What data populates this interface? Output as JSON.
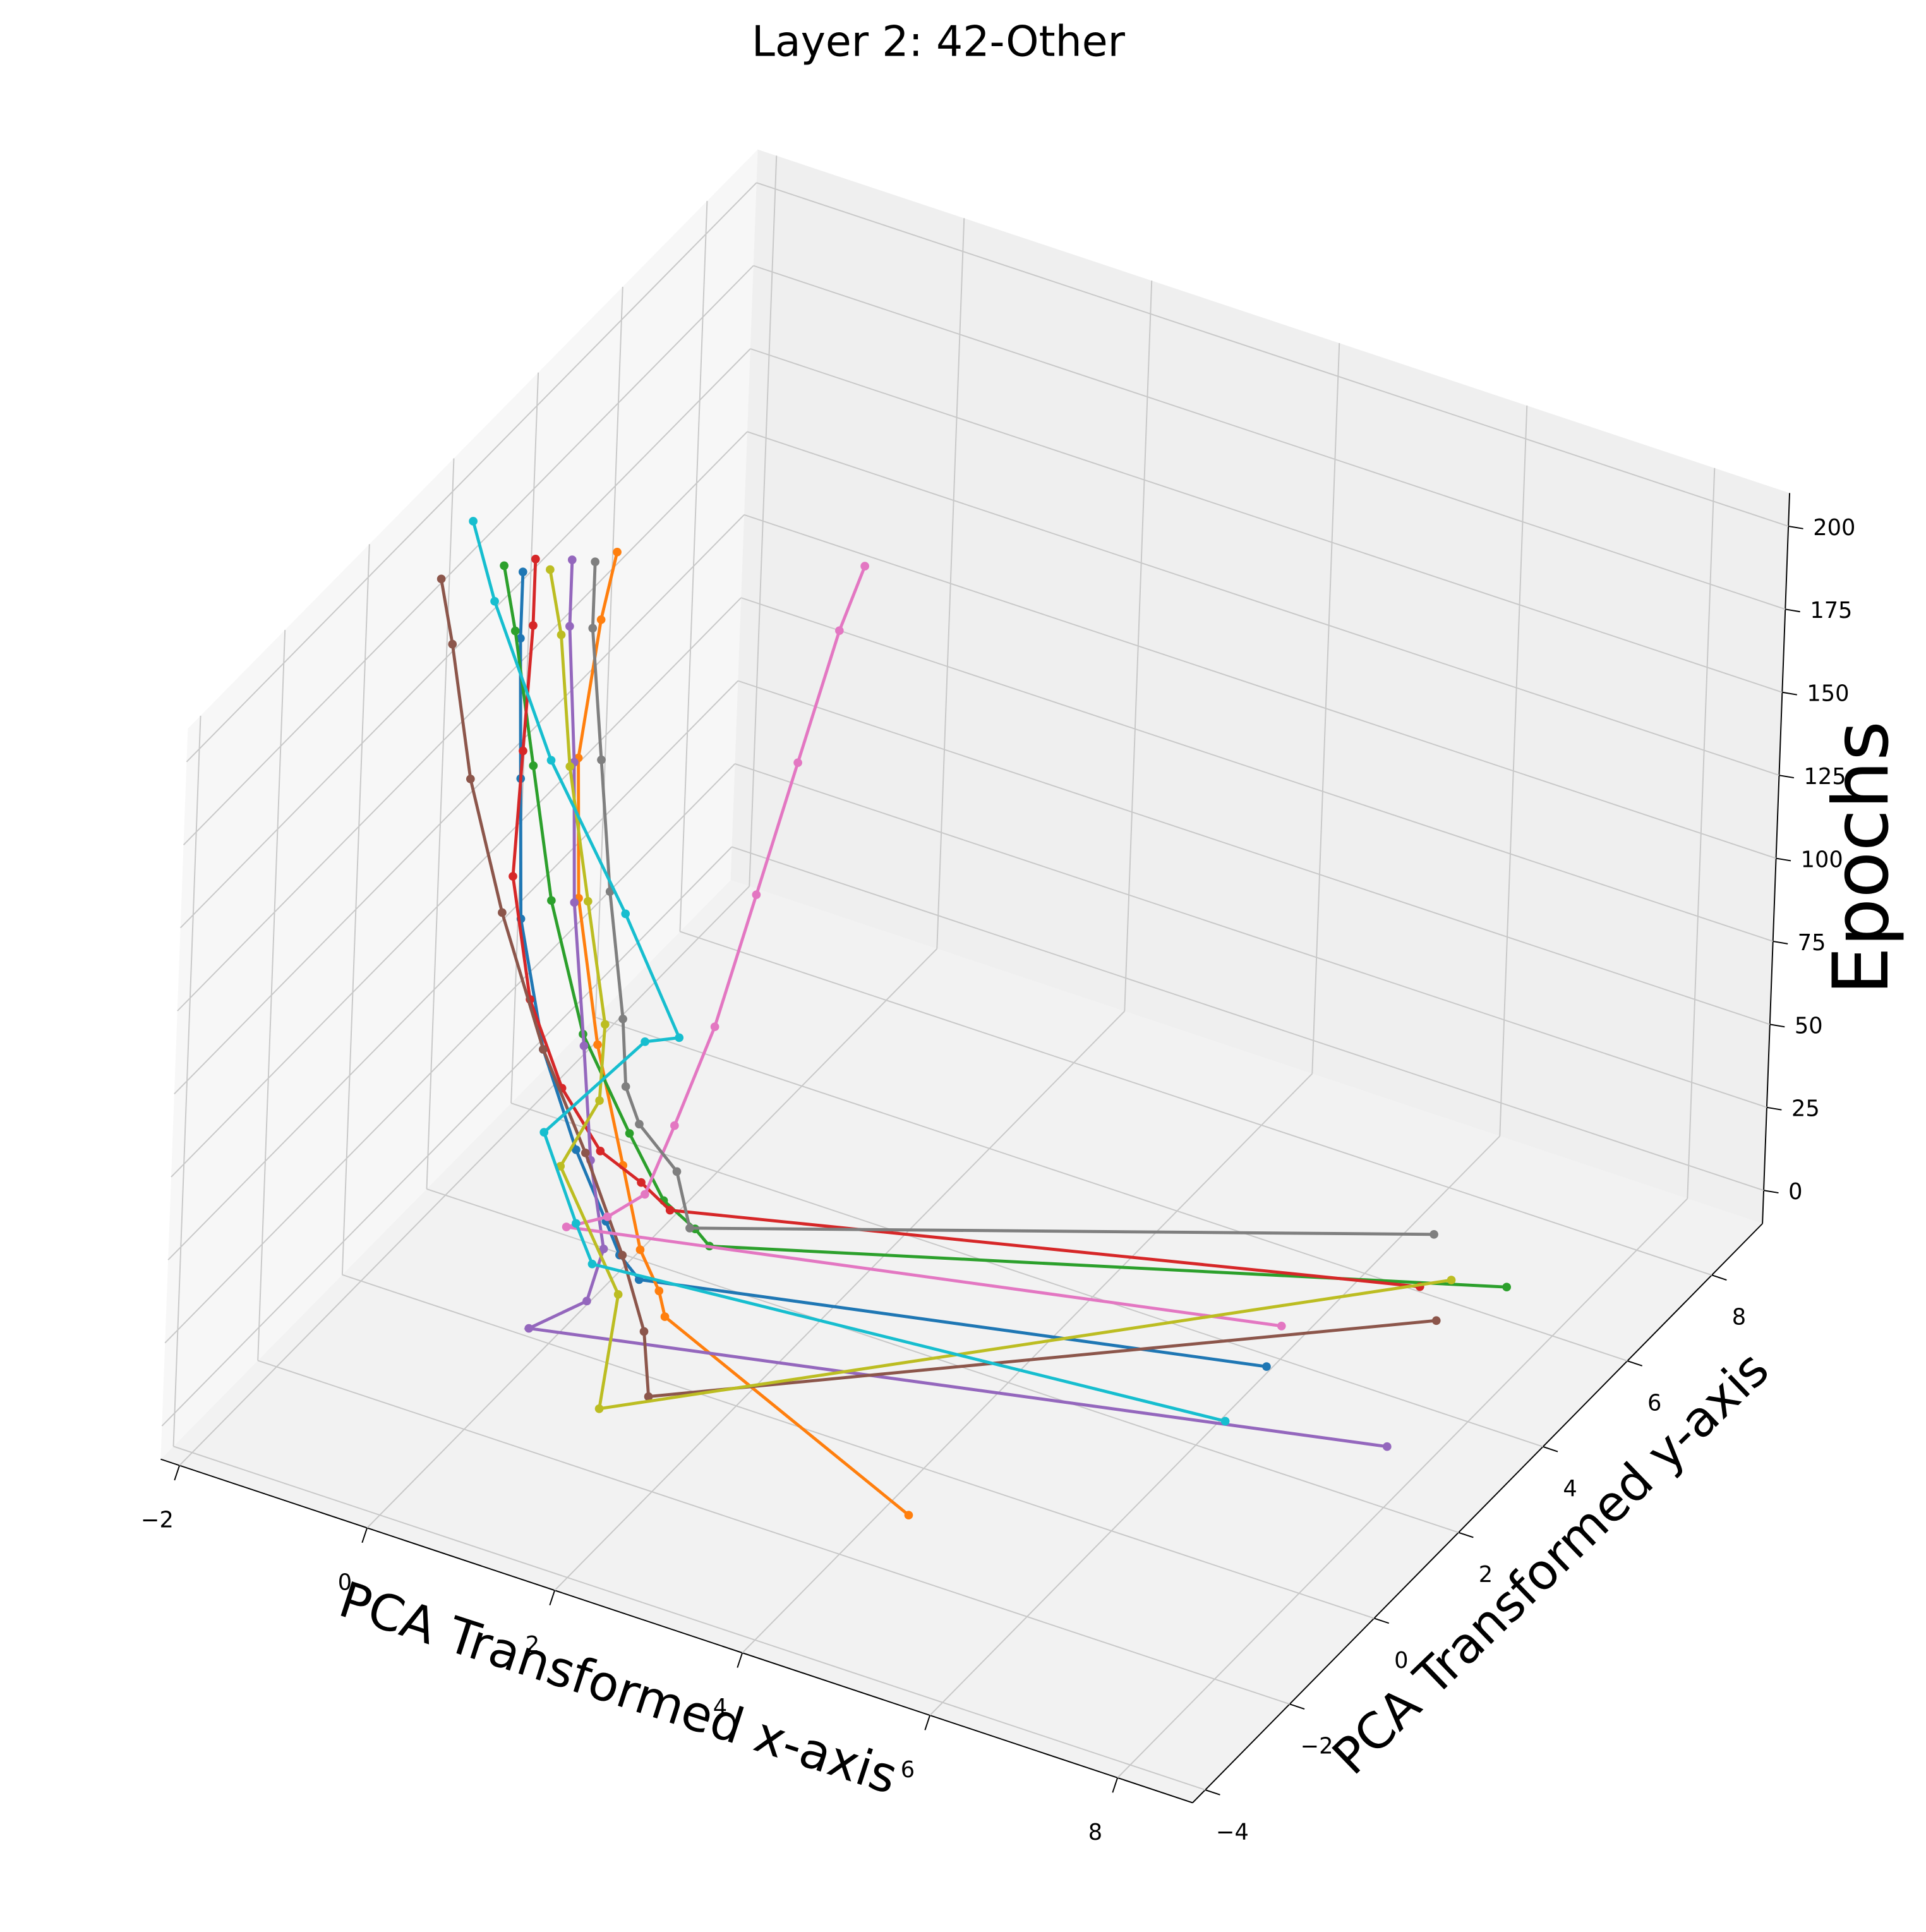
{
  "chart_data": {
    "type": "line3d",
    "title": "Layer 2: 42-Other",
    "xlabel": "PCA Transformed x-axis",
    "ylabel": "PCA Transformed y-axis",
    "zlabel": "Epochs",
    "xlim": [
      -2.2,
      8.8
    ],
    "ylim": [
      -4.3,
      9.2
    ],
    "zlim": [
      -10,
      210
    ],
    "xticks": [
      {
        "value": -2,
        "label": "−2"
      },
      0,
      2,
      4,
      6,
      8
    ],
    "yticks": [
      {
        "value": -4,
        "label": "−4"
      },
      {
        "value": -2,
        "label": "−2"
      },
      0,
      2,
      4,
      6,
      8
    ],
    "zticks": [
      0,
      25,
      50,
      75,
      100,
      125,
      150,
      175,
      200
    ],
    "grid": true,
    "series": [
      {
        "color": "#1f77b4",
        "x": [
          6.2,
          0.5,
          0.2,
          0.0,
          -0.3,
          -0.6,
          -0.8,
          -0.9,
          -1.0,
          -1.0
        ],
        "y": [
          3.2,
          1.0,
          1.2,
          1.3,
          1.2,
          1.0,
          0.8,
          0.9,
          1.0,
          1.0
        ],
        "z": [
          0,
          1,
          3,
          10,
          30,
          60,
          100,
          140,
          180,
          200
        ]
      },
      {
        "color": "#ff7f0e",
        "x": [
          4.5,
          1.0,
          0.8,
          0.5,
          0.2,
          -0.2,
          -0.5,
          -0.6,
          -0.5,
          -0.4
        ],
        "y": [
          -1.5,
          0.5,
          0.8,
          1.0,
          1.2,
          1.4,
          1.5,
          1.6,
          1.8,
          1.9
        ],
        "z": [
          0,
          1,
          3,
          10,
          30,
          60,
          100,
          140,
          180,
          200
        ]
      },
      {
        "color": "#2ca02c",
        "x": [
          7.5,
          0.8,
          0.6,
          0.3,
          0.0,
          -0.4,
          -0.7,
          -0.9,
          -1.1,
          -1.2
        ],
        "y": [
          6.0,
          2.0,
          2.1,
          2.0,
          1.8,
          1.5,
          1.3,
          1.2,
          1.1,
          1.0
        ],
        "z": [
          0,
          1,
          3,
          10,
          30,
          60,
          100,
          140,
          180,
          200
        ]
      },
      {
        "color": "#d62728",
        "x": [
          6.8,
          0.2,
          -0.2,
          -0.6,
          -0.9,
          -1.1,
          -1.2,
          -1.1,
          -1.0,
          -1.0
        ],
        "y": [
          5.5,
          2.4,
          2.6,
          2.5,
          2.2,
          1.8,
          1.5,
          1.4,
          1.3,
          1.3
        ],
        "z": [
          0,
          1,
          3,
          10,
          30,
          60,
          100,
          140,
          180,
          200
        ]
      },
      {
        "color": "#9467bd",
        "x": [
          7.8,
          0.0,
          0.3,
          0.2,
          -0.1,
          -0.3,
          -0.5,
          -0.6,
          -0.7,
          -0.7
        ],
        "y": [
          2.5,
          -0.5,
          0.2,
          0.8,
          1.1,
          1.3,
          1.4,
          1.5,
          1.5,
          1.5
        ],
        "z": [
          0,
          1,
          3,
          10,
          30,
          60,
          100,
          140,
          180,
          200
        ]
      },
      {
        "color": "#8c564b",
        "x": [
          7.2,
          1.5,
          1.0,
          0.4,
          -0.2,
          -0.6,
          -1.0,
          -1.3,
          -1.5,
          -1.6
        ],
        "y": [
          5.0,
          -1.0,
          0.0,
          0.8,
          1.2,
          1.0,
          0.8,
          0.6,
          0.5,
          0.4
        ],
        "z": [
          0,
          1,
          3,
          10,
          30,
          60,
          100,
          140,
          180,
          200
        ]
      },
      {
        "color": "#e377c2",
        "x": [
          6.0,
          -0.5,
          -0.2,
          0.1,
          0.3,
          0.6,
          0.9,
          1.2,
          1.5,
          1.7
        ],
        "y": [
          4.0,
          1.5,
          1.8,
          2.0,
          2.2,
          2.4,
          2.6,
          2.8,
          3.0,
          3.1
        ],
        "z": [
          0,
          1,
          3,
          10,
          30,
          60,
          100,
          140,
          180,
          200
        ]
      },
      {
        "color": "#7f7f7f",
        "x": [
          6.5,
          0.5,
          0.0,
          -0.5,
          -0.4,
          -0.2,
          -0.3,
          -0.4,
          -0.5,
          -0.5
        ],
        "y": [
          6.5,
          2.2,
          3.0,
          3.2,
          2.6,
          2.0,
          1.8,
          1.7,
          1.6,
          1.6
        ],
        "z": [
          0,
          1,
          3,
          10,
          30,
          60,
          100,
          140,
          180,
          200
        ]
      },
      {
        "color": "#bcbd22",
        "x": [
          7.0,
          1.2,
          0.5,
          -0.8,
          -0.5,
          -0.3,
          -0.4,
          -0.6,
          -0.7,
          -0.8
        ],
        "y": [
          5.8,
          -1.5,
          0.5,
          2.0,
          2.2,
          1.8,
          1.5,
          1.4,
          1.3,
          1.2
        ],
        "z": [
          0,
          1,
          3,
          10,
          30,
          60,
          100,
          140,
          180,
          200
        ]
      },
      {
        "color": "#17becf",
        "x": [
          6.3,
          0.0,
          -0.4,
          -1.2,
          -0.6,
          0.4,
          0.0,
          -0.8,
          -1.5,
          -1.8
        ],
        "y": [
          2.0,
          1.0,
          1.5,
          2.5,
          3.5,
          2.0,
          1.5,
          1.4,
          1.5,
          1.6
        ],
        "z": [
          0,
          1,
          3,
          10,
          30,
          60,
          100,
          140,
          180,
          200
        ]
      }
    ]
  }
}
